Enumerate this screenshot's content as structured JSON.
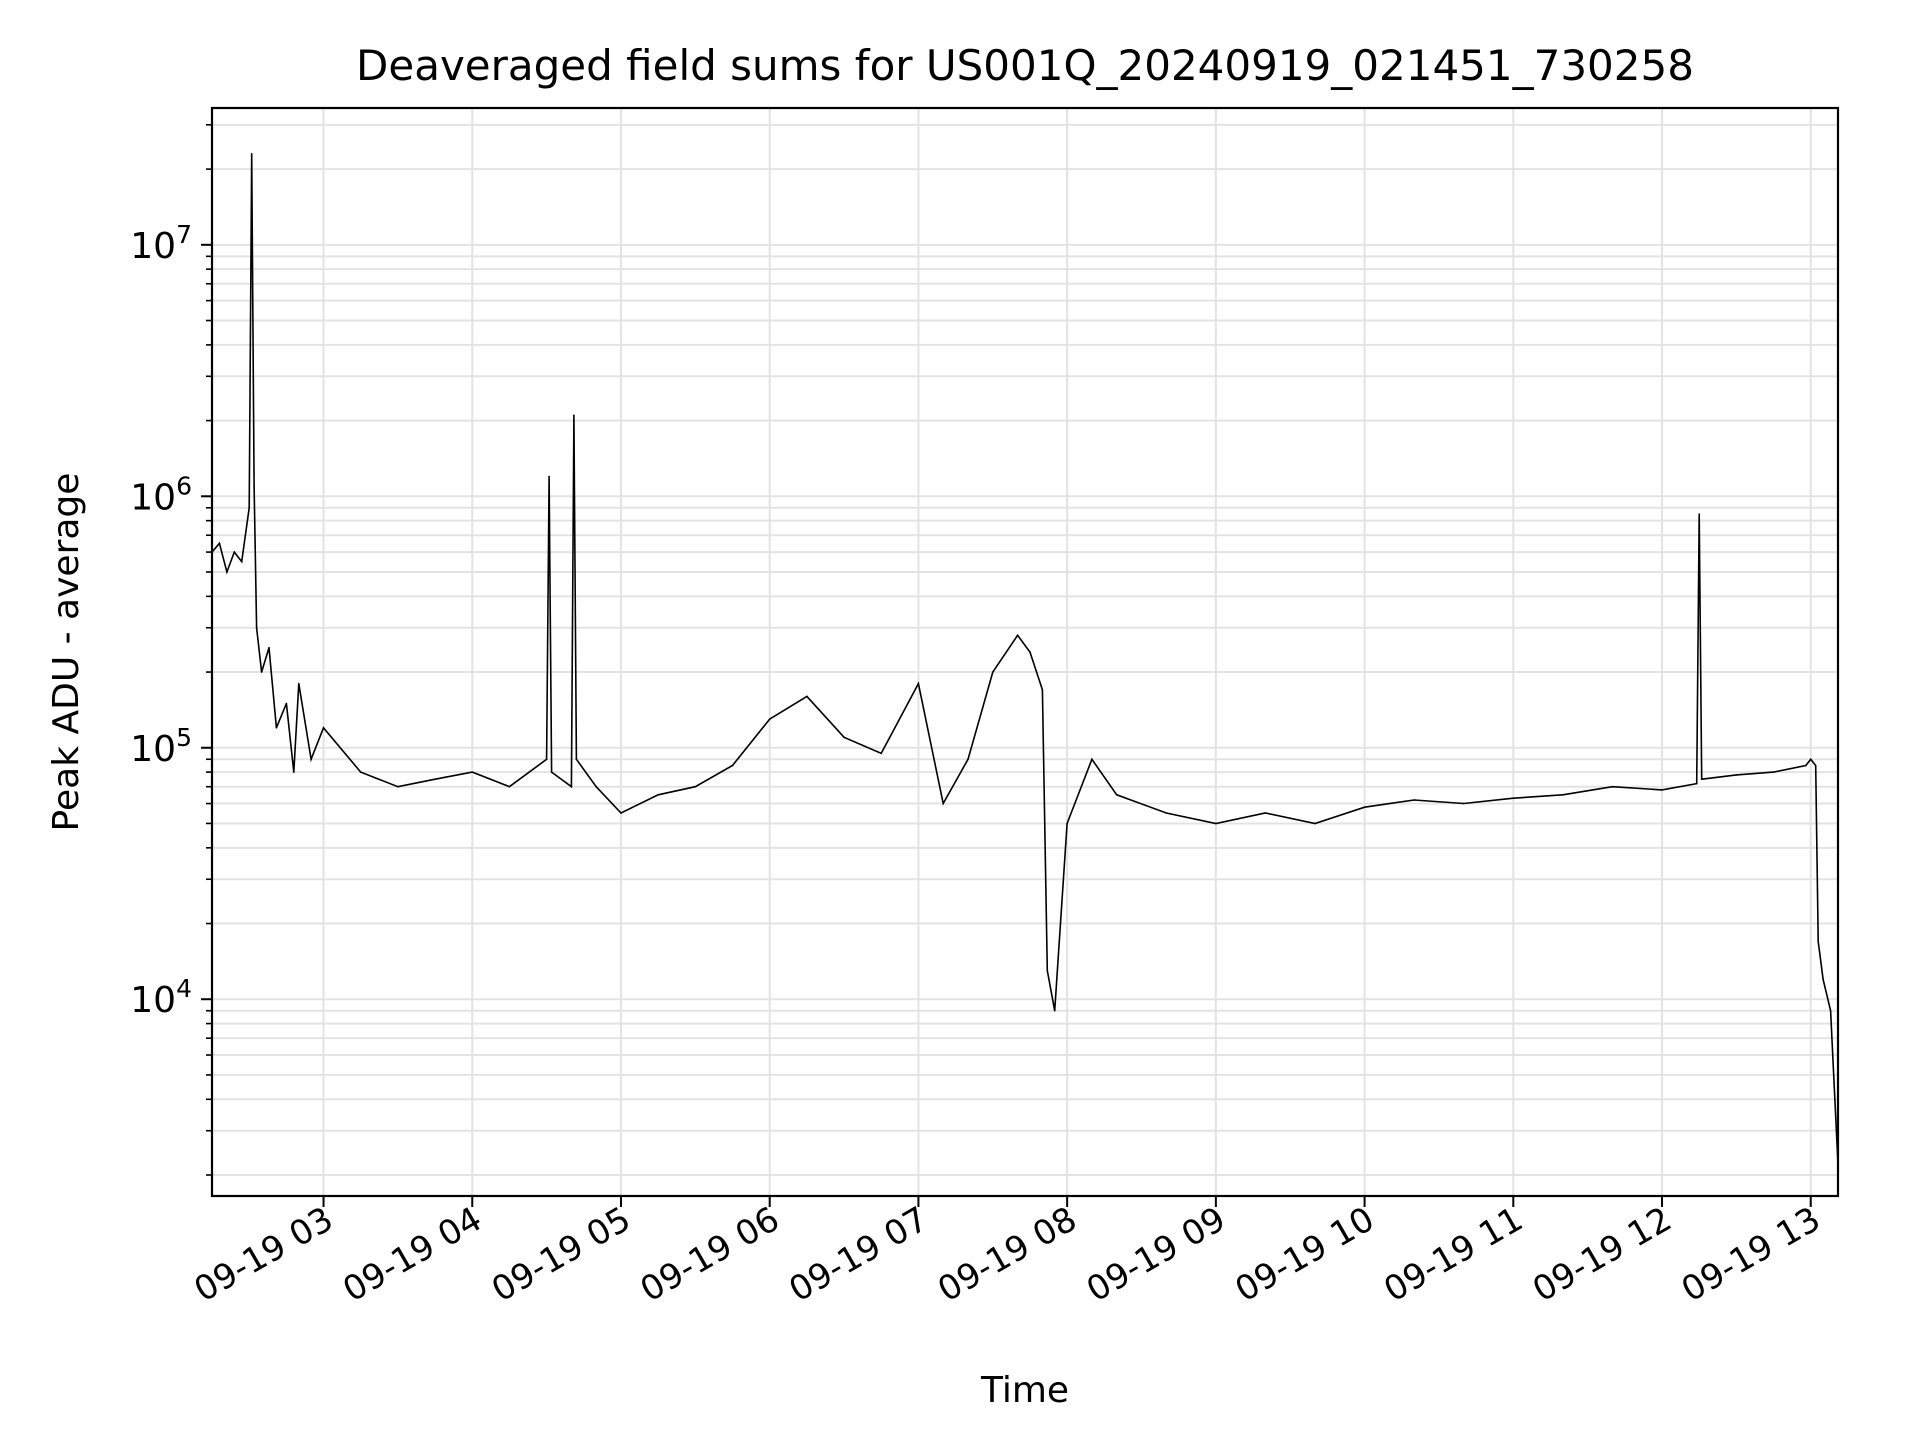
{
  "chart_data": {
    "type": "line",
    "title": "Deaveraged field sums for US001Q_20240919_021451_730258",
    "xlabel": "Time",
    "ylabel": "Peak ADU - average",
    "xscale": "time",
    "yscale": "log",
    "xlim": [
      "2024-09-19 02:15",
      "2024-09-19 13:11"
    ],
    "ylim": [
      1650,
      35000000
    ],
    "grid": true,
    "grid_minor": true,
    "legend": "none",
    "line_color": "#000000",
    "grid_color": "#e3e3e3",
    "x_ticks": [
      {
        "value": "2024-09-19 03:00",
        "label": "09-19 03"
      },
      {
        "value": "2024-09-19 04:00",
        "label": "09-19 04"
      },
      {
        "value": "2024-09-19 05:00",
        "label": "09-19 05"
      },
      {
        "value": "2024-09-19 06:00",
        "label": "09-19 06"
      },
      {
        "value": "2024-09-19 07:00",
        "label": "09-19 07"
      },
      {
        "value": "2024-09-19 08:00",
        "label": "09-19 08"
      },
      {
        "value": "2024-09-19 09:00",
        "label": "09-19 09"
      },
      {
        "value": "2024-09-19 10:00",
        "label": "09-19 10"
      },
      {
        "value": "2024-09-19 11:00",
        "label": "09-19 11"
      },
      {
        "value": "2024-09-19 12:00",
        "label": "09-19 12"
      },
      {
        "value": "2024-09-19 13:00",
        "label": "09-19 13"
      }
    ],
    "y_ticks": [
      {
        "value": 10000,
        "base": "10",
        "exp": "4"
      },
      {
        "value": 100000,
        "base": "10",
        "exp": "5"
      },
      {
        "value": 1000000,
        "base": "10",
        "exp": "6"
      },
      {
        "value": 10000000,
        "base": "10",
        "exp": "7"
      }
    ],
    "series": [
      {
        "x": [
          "2024-09-19 02:15",
          "2024-09-19 02:18",
          "2024-09-19 02:21",
          "2024-09-19 02:24",
          "2024-09-19 02:27",
          "2024-09-19 02:30",
          "2024-09-19 02:31",
          "2024-09-19 02:32",
          "2024-09-19 02:33",
          "2024-09-19 02:35",
          "2024-09-19 02:38",
          "2024-09-19 02:41",
          "2024-09-19 02:45",
          "2024-09-19 02:48",
          "2024-09-19 02:50",
          "2024-09-19 02:55",
          "2024-09-19 03:00",
          "2024-09-19 03:15",
          "2024-09-19 03:30",
          "2024-09-19 03:45",
          "2024-09-19 04:00",
          "2024-09-19 04:15",
          "2024-09-19 04:30",
          "2024-09-19 04:31",
          "2024-09-19 04:32",
          "2024-09-19 04:40",
          "2024-09-19 04:41",
          "2024-09-19 04:42",
          "2024-09-19 04:50",
          "2024-09-19 05:00",
          "2024-09-19 05:15",
          "2024-09-19 05:30",
          "2024-09-19 05:45",
          "2024-09-19 06:00",
          "2024-09-19 06:15",
          "2024-09-19 06:30",
          "2024-09-19 06:45",
          "2024-09-19 07:00",
          "2024-09-19 07:10",
          "2024-09-19 07:20",
          "2024-09-19 07:30",
          "2024-09-19 07:40",
          "2024-09-19 07:45",
          "2024-09-19 07:50",
          "2024-09-19 07:52",
          "2024-09-19 07:55",
          "2024-09-19 08:00",
          "2024-09-19 08:10",
          "2024-09-19 08:20",
          "2024-09-19 08:40",
          "2024-09-19 09:00",
          "2024-09-19 09:20",
          "2024-09-19 09:40",
          "2024-09-19 10:00",
          "2024-09-19 10:20",
          "2024-09-19 10:40",
          "2024-09-19 11:00",
          "2024-09-19 11:20",
          "2024-09-19 11:40",
          "2024-09-19 12:00",
          "2024-09-19 12:14",
          "2024-09-19 12:15",
          "2024-09-19 12:16",
          "2024-09-19 12:30",
          "2024-09-19 12:45",
          "2024-09-19 12:58",
          "2024-09-19 13:00",
          "2024-09-19 13:02",
          "2024-09-19 13:03",
          "2024-09-19 13:05",
          "2024-09-19 13:08",
          "2024-09-19 13:11"
        ],
        "y": [
          600000,
          650000,
          500000,
          600000,
          550000,
          900000,
          23000000,
          1100000,
          300000,
          200000,
          250000,
          120000,
          150000,
          80000,
          180000,
          90000,
          120000,
          80000,
          70000,
          75000,
          80000,
          70000,
          90000,
          1200000,
          80000,
          70000,
          2100000,
          90000,
          70000,
          55000,
          65000,
          70000,
          85000,
          130000,
          160000,
          110000,
          95000,
          180000,
          60000,
          90000,
          200000,
          280000,
          240000,
          170000,
          13000,
          9000,
          50000,
          90000,
          65000,
          55000,
          50000,
          55000,
          50000,
          58000,
          62000,
          60000,
          63000,
          65000,
          70000,
          68000,
          72000,
          850000,
          75000,
          78000,
          80000,
          85000,
          90000,
          85000,
          17000,
          12000,
          9000,
          2200
        ]
      }
    ]
  }
}
